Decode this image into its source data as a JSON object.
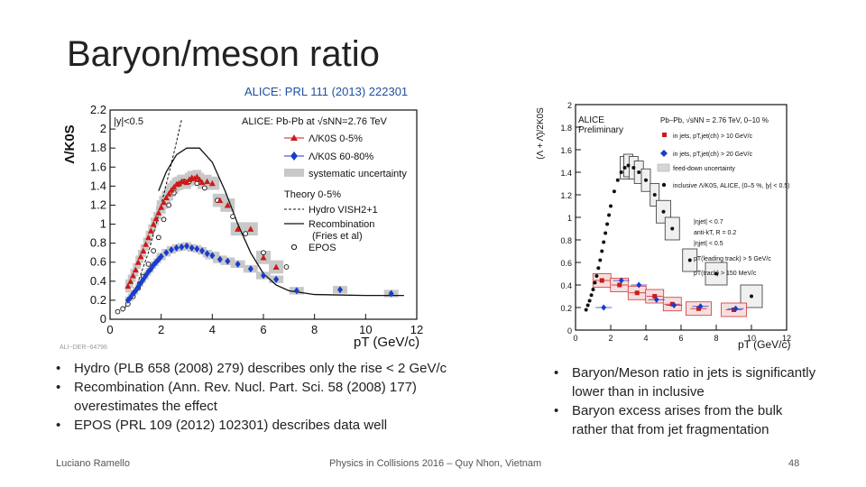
{
  "slide": {
    "title": "Baryon/meson ratio",
    "reference": "ALICE: PRL 111 (2013) 222301",
    "bullets_left": [
      "Hydro (PLB 658 (2008) 279) describes only the rise < 2 GeV/c",
      "Recombination (Ann. Rev. Nucl. Part. Sci. 58 (2008) 177) overestimates the effect",
      "EPOS (PRL 109 (2012) 102301) describes data well"
    ],
    "bullets_right": [
      "Baryon/Meson ratio in jets is significantly lower than in inclusive",
      "Baryon excess arises from the bulk rather that from jet fragmentation"
    ],
    "footer": {
      "author": "Luciano Ramello",
      "conference": "Physics in Collisions 2016 – Quy Nhon, Vietnam",
      "page": "48"
    }
  },
  "chart_data": [
    {
      "type": "scatter",
      "id": "left",
      "figure_id": "ALI−DER−64796",
      "ylabel": "Λ/K0S",
      "xlabel": "pT (GeV/c)",
      "xlim": [
        0,
        12
      ],
      "ylim": [
        0,
        2.2
      ],
      "xticks": [
        "0",
        "2",
        "4",
        "6",
        "8",
        "10",
        "12"
      ],
      "yticks": [
        "0",
        "0.2",
        "0.4",
        "0.6",
        "0.8",
        "1",
        "1.2",
        "1.4",
        "1.6",
        "1.8",
        "2",
        "2.2"
      ],
      "rapidity_label": "|y|<0.5",
      "legend_title": "ALICE: Pb-Pb at √sNN=2.76 TeV",
      "legend": [
        "Λ/K0S 0-5%",
        "Λ/K0S 60-80%",
        "systematic uncertainty"
      ],
      "theory_title": "Theory 0-5%",
      "theory_legend": [
        "Hydro VISH2+1",
        "Recombination",
        "(Fries et al)",
        "EPOS"
      ],
      "colors": {
        "central": "#cc1a1a",
        "peripheral": "#1a3ccc",
        "syst": "#c8c8c8"
      },
      "series": [
        {
          "name": "0-5%",
          "x": [
            0.7,
            0.8,
            0.9,
            1.0,
            1.1,
            1.2,
            1.3,
            1.4,
            1.5,
            1.6,
            1.7,
            1.8,
            1.9,
            2.0,
            2.1,
            2.2,
            2.3,
            2.4,
            2.5,
            2.6,
            2.7,
            2.8,
            2.9,
            3.0,
            3.1,
            3.2,
            3.3,
            3.4,
            3.5,
            3.6,
            3.8,
            4.0,
            4.3,
            4.6,
            5.0,
            5.5,
            6.0,
            6.5
          ],
          "y": [
            0.35,
            0.4,
            0.46,
            0.52,
            0.6,
            0.66,
            0.72,
            0.79,
            0.86,
            0.93,
            1.0,
            1.06,
            1.12,
            1.18,
            1.23,
            1.28,
            1.32,
            1.36,
            1.39,
            1.42,
            1.43,
            1.45,
            1.45,
            1.44,
            1.47,
            1.49,
            1.48,
            1.5,
            1.47,
            1.44,
            1.45,
            1.43,
            1.25,
            1.2,
            0.95,
            0.95,
            0.65,
            0.55
          ]
        },
        {
          "name": "60-80%",
          "x": [
            0.7,
            0.8,
            0.9,
            1.0,
            1.1,
            1.2,
            1.3,
            1.4,
            1.5,
            1.6,
            1.7,
            1.8,
            1.9,
            2.0,
            2.2,
            2.4,
            2.6,
            2.8,
            3.0,
            3.2,
            3.4,
            3.6,
            3.8,
            4.0,
            4.3,
            4.6,
            5.0,
            5.5,
            6.0,
            6.5,
            7.3,
            9.0,
            11.0
          ],
          "y": [
            0.2,
            0.23,
            0.27,
            0.3,
            0.34,
            0.38,
            0.42,
            0.46,
            0.5,
            0.53,
            0.57,
            0.6,
            0.63,
            0.66,
            0.7,
            0.73,
            0.75,
            0.76,
            0.77,
            0.75,
            0.74,
            0.72,
            0.69,
            0.67,
            0.63,
            0.61,
            0.58,
            0.53,
            0.46,
            0.42,
            0.3,
            0.31,
            0.27
          ]
        },
        {
          "name": "EPOS",
          "x": [
            0.3,
            0.5,
            0.7,
            0.9,
            1.1,
            1.3,
            1.5,
            1.7,
            1.9,
            2.1,
            2.3,
            2.5,
            2.7,
            2.9,
            3.1,
            3.4,
            3.7,
            4.2,
            4.8,
            5.3,
            6.0,
            6.9
          ],
          "y": [
            0.08,
            0.11,
            0.16,
            0.24,
            0.33,
            0.45,
            0.58,
            0.72,
            0.86,
            1.05,
            1.2,
            1.33,
            1.42,
            1.45,
            1.45,
            1.43,
            1.38,
            1.25,
            1.08,
            0.9,
            0.7,
            0.55
          ]
        },
        {
          "name": "Hydro VISH2+1",
          "x": [
            0.5,
            1.0,
            1.5,
            2.0,
            2.5,
            2.8
          ],
          "y": [
            0.08,
            0.32,
            0.7,
            1.2,
            1.75,
            2.1
          ]
        },
        {
          "name": "Recombination",
          "x": [
            1.9,
            2.2,
            2.6,
            3.0,
            3.5,
            4.0,
            4.5,
            5.0,
            5.5,
            6.0,
            6.5,
            7.0,
            8.0,
            10.0,
            11.5
          ],
          "y": [
            1.35,
            1.55,
            1.73,
            1.8,
            1.8,
            1.65,
            1.35,
            1.0,
            0.7,
            0.48,
            0.36,
            0.3,
            0.26,
            0.25,
            0.25
          ]
        }
      ]
    },
    {
      "type": "scatter",
      "id": "right",
      "figure_id": "ALI−PREL−83793",
      "ylabel": "(Λ + Λ̄)/2K0S",
      "xlabel": "pT (GeV/c)",
      "xlim": [
        0,
        12
      ],
      "ylim": [
        0,
        2
      ],
      "xticks": [
        "0",
        "2",
        "4",
        "6",
        "8",
        "10",
        "12"
      ],
      "yticks": [
        "0",
        "0.2",
        "0.4",
        "0.6",
        "0.8",
        "1",
        "1.2",
        "1.4",
        "1.6",
        "1.8",
        "2"
      ],
      "experiment": "ALICE",
      "status": "Preliminary",
      "system": "Pb–Pb, √sNN = 2.76 TeV, 0–10 %",
      "legend": [
        "in jets, pT,jet(ch) > 10 GeV/c",
        "in jets, pT,jet(ch) > 20 GeV/c",
        "feed-down uncertainty",
        "inclusive Λ/K0S, ALICE, (0–5 %, |y| < 0.5)"
      ],
      "cuts": [
        "|ηjet| < 0.7",
        "anti-kT, R = 0.2",
        "|ηjet| < 0.5",
        "pT(leading track) > 5 GeV/c",
        "pT(track) > 150 MeV/c"
      ],
      "colors": {
        "jet10": "#cc1a1a",
        "jet20": "#1a3ccc",
        "inclusive": "#111111"
      },
      "series": [
        {
          "name": "inclusive",
          "x": [
            0.6,
            0.7,
            0.8,
            0.9,
            1.0,
            1.1,
            1.2,
            1.3,
            1.4,
            1.5,
            1.6,
            1.7,
            1.8,
            1.9,
            2.0,
            2.2,
            2.4,
            2.6,
            2.8,
            3.0,
            3.3,
            3.6,
            4.0,
            4.5,
            5.0,
            5.5,
            6.5,
            8.0,
            10.0
          ],
          "y": [
            0.18,
            0.22,
            0.26,
            0.31,
            0.36,
            0.42,
            0.48,
            0.55,
            0.62,
            0.7,
            0.78,
            0.86,
            0.94,
            1.02,
            1.1,
            1.23,
            1.33,
            1.4,
            1.44,
            1.46,
            1.44,
            1.4,
            1.33,
            1.2,
            1.05,
            0.9,
            0.62,
            0.5,
            0.3
          ]
        },
        {
          "name": "in jets > 10 GeV/c",
          "x": [
            1.5,
            2.5,
            3.5,
            4.5,
            5.5,
            7.0,
            9.0
          ],
          "y": [
            0.44,
            0.4,
            0.33,
            0.3,
            0.23,
            0.19,
            0.18
          ]
        },
        {
          "name": "in jets > 20 GeV/c",
          "x": [
            1.5,
            2.5,
            3.5,
            4.5,
            5.5,
            7.0,
            9.0
          ],
          "y": [
            0.2,
            0.44,
            0.4,
            0.27,
            0.22,
            0.21,
            0.19
          ]
        }
      ]
    }
  ]
}
